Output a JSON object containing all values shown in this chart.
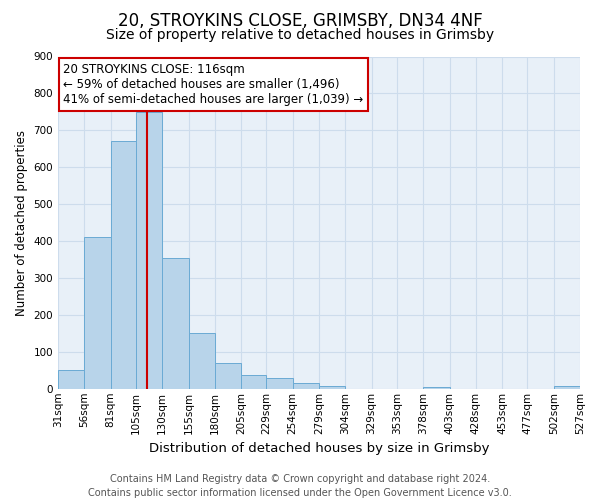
{
  "title": "20, STROYKINS CLOSE, GRIMSBY, DN34 4NF",
  "subtitle": "Size of property relative to detached houses in Grimsby",
  "xlabel": "Distribution of detached houses by size in Grimsby",
  "ylabel": "Number of detached properties",
  "footer_line1": "Contains HM Land Registry data © Crown copyright and database right 2024.",
  "footer_line2": "Contains public sector information licensed under the Open Government Licence v3.0.",
  "bin_edges": [
    31,
    56,
    81,
    105,
    130,
    155,
    180,
    205,
    229,
    254,
    279,
    304,
    329,
    353,
    378,
    403,
    428,
    453,
    477,
    502,
    527
  ],
  "bar_heights": [
    50,
    410,
    670,
    750,
    355,
    150,
    70,
    38,
    28,
    15,
    8,
    0,
    0,
    0,
    5,
    0,
    0,
    0,
    0,
    8
  ],
  "bar_color": "#b8d4ea",
  "bar_edgecolor": "#6aaad4",
  "bg_color": "#e8f0f8",
  "grid_color": "#cddcec",
  "property_line_x": 116,
  "property_line_color": "#cc0000",
  "annotation_text": "20 STROYKINS CLOSE: 116sqm\n← 59% of detached houses are smaller (1,496)\n41% of semi-detached houses are larger (1,039) →",
  "annotation_box_edgecolor": "#cc0000",
  "annotation_box_facecolor": "#ffffff",
  "ylim": [
    0,
    900
  ],
  "yticks": [
    0,
    100,
    200,
    300,
    400,
    500,
    600,
    700,
    800,
    900
  ],
  "title_fontsize": 12,
  "subtitle_fontsize": 10,
  "xlabel_fontsize": 9.5,
  "ylabel_fontsize": 8.5,
  "tick_fontsize": 7.5,
  "annotation_fontsize": 8.5,
  "footer_fontsize": 7
}
